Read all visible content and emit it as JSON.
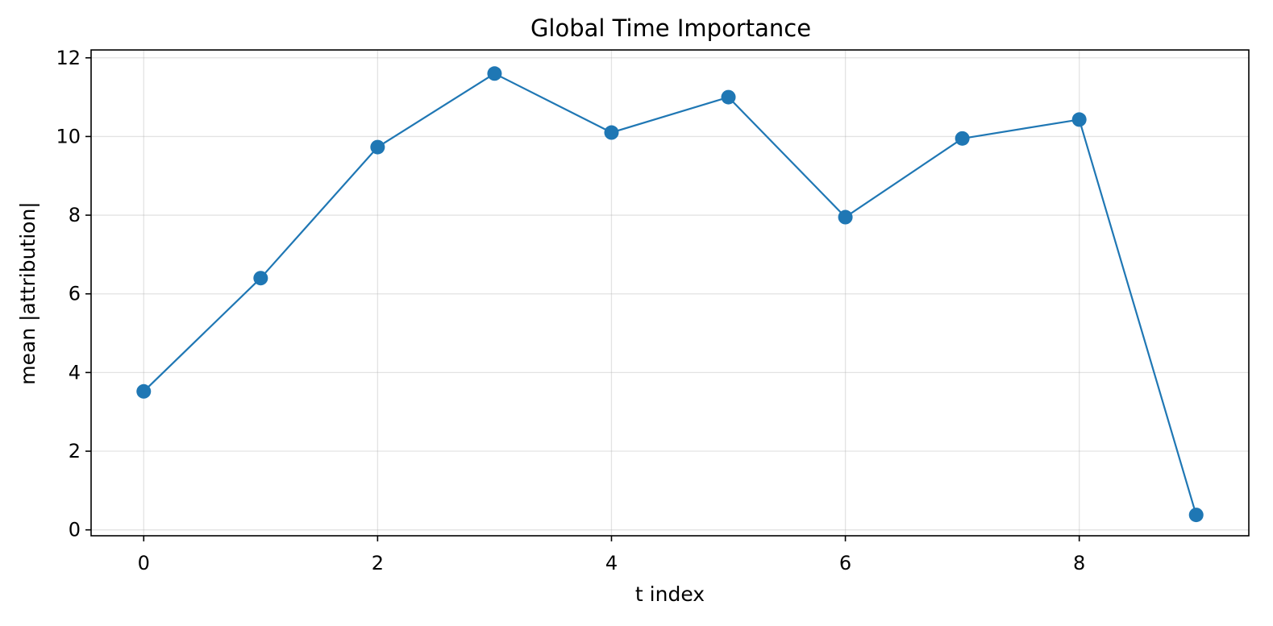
{
  "chart_data": {
    "type": "line",
    "title": "Global Time Importance",
    "xlabel": "t index",
    "ylabel": "mean |attribution|",
    "x": [
      0,
      1,
      2,
      3,
      4,
      5,
      6,
      7,
      8,
      9
    ],
    "series": [
      {
        "values": [
          3.52,
          6.4,
          9.73,
          11.6,
          10.1,
          11.0,
          7.95,
          9.95,
          10.43,
          0.38
        ],
        "color": "#1f77b4",
        "marker": "circle"
      }
    ],
    "xticks": [
      0,
      2,
      4,
      6,
      8
    ],
    "yticks": [
      0,
      2,
      4,
      6,
      8,
      10,
      12
    ],
    "xlim": [
      -0.45,
      9.45
    ],
    "ylim": [
      -0.15,
      12.2
    ],
    "grid": true,
    "legend": "none"
  }
}
